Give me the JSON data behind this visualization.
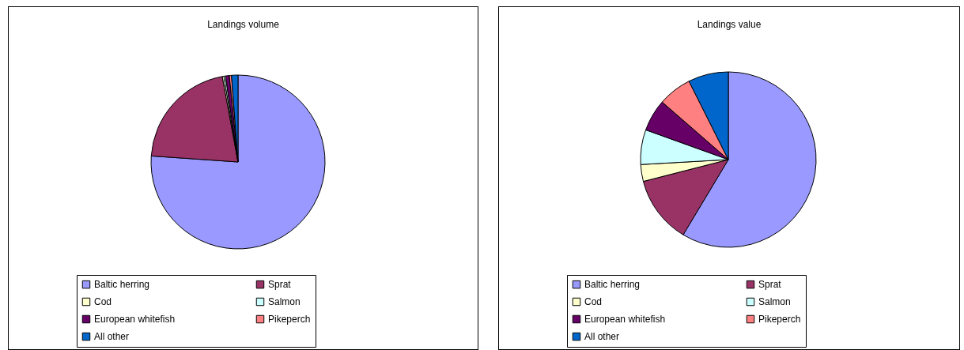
{
  "chart_data": [
    {
      "type": "pie",
      "title": "Landings volume",
      "categories": [
        "Baltic herring",
        "Sprat",
        "Cod",
        "Salmon",
        "European whitefish",
        "Pikeperch",
        "All other"
      ],
      "values": [
        76.1,
        21.0,
        0.3,
        0.3,
        0.7,
        0.4,
        1.2
      ],
      "colors": [
        "#9999ff",
        "#993366",
        "#ffffcc",
        "#ccffff",
        "#660066",
        "#ff8080",
        "#0066cc"
      ],
      "legend": "bottom"
    },
    {
      "type": "pie",
      "title": "Landings value",
      "categories": [
        "Baltic herring",
        "Sprat",
        "Cod",
        "Salmon",
        "European whitefish",
        "Pikeperch",
        "All other"
      ],
      "values": [
        58.6,
        12.4,
        3.1,
        6.4,
        5.9,
        6.2,
        7.4
      ],
      "colors": [
        "#9999ff",
        "#993366",
        "#ffffcc",
        "#ccffff",
        "#660066",
        "#ff8080",
        "#0066cc"
      ],
      "legend": "bottom"
    }
  ]
}
